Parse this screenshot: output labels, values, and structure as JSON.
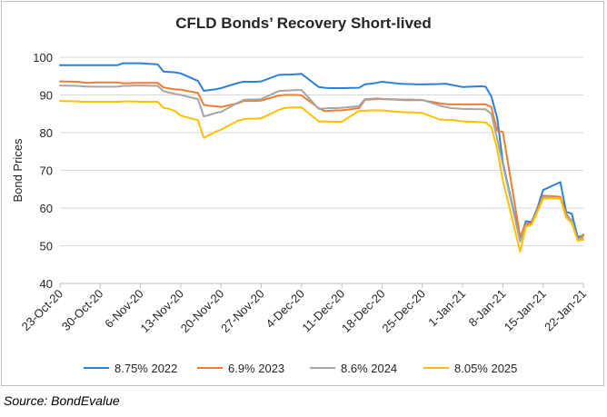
{
  "chart_data": {
    "type": "line",
    "title": "CFLD Bonds’ Recovery Short-lived",
    "ylabel": "Bond Prices",
    "xlabel": "",
    "ylim": [
      40,
      100
    ],
    "yticks": [
      40,
      50,
      60,
      70,
      80,
      90,
      100
    ],
    "grid": true,
    "legend_position": "bottom",
    "x_tick_labels": [
      "23-Oct-20",
      "30-Oct-20",
      "6-Nov-20",
      "13-Nov-20",
      "20-Nov-20",
      "27-Nov-20",
      "4-Dec-20",
      "11-Dec-20",
      "18-Dec-20",
      "25-Dec-20",
      "1-Jan-21",
      "8-Jan-21",
      "15-Jan-21",
      "22-Jan-21"
    ],
    "x": [
      "2020-10-23",
      "2020-10-26",
      "2020-10-27",
      "2020-10-28",
      "2020-10-29",
      "2020-10-30",
      "2020-11-02",
      "2020-11-03",
      "2020-11-04",
      "2020-11-05",
      "2020-11-06",
      "2020-11-09",
      "2020-11-10",
      "2020-11-11",
      "2020-11-12",
      "2020-11-13",
      "2020-11-16",
      "2020-11-17",
      "2020-11-18",
      "2020-11-19",
      "2020-11-20",
      "2020-11-23",
      "2020-11-24",
      "2020-11-25",
      "2020-11-26",
      "2020-11-27",
      "2020-11-30",
      "2020-12-01",
      "2020-12-02",
      "2020-12-03",
      "2020-12-04",
      "2020-12-07",
      "2020-12-08",
      "2020-12-09",
      "2020-12-10",
      "2020-12-11",
      "2020-12-14",
      "2020-12-15",
      "2020-12-16",
      "2020-12-17",
      "2020-12-18",
      "2020-12-21",
      "2020-12-22",
      "2020-12-23",
      "2020-12-24",
      "2020-12-25",
      "2020-12-28",
      "2020-12-29",
      "2020-12-30",
      "2020-12-31",
      "2021-01-01",
      "2021-01-04",
      "2021-01-05",
      "2021-01-06",
      "2021-01-07",
      "2021-01-08",
      "2021-01-11",
      "2021-01-12",
      "2021-01-13",
      "2021-01-14",
      "2021-01-15",
      "2021-01-18",
      "2021-01-19",
      "2021-01-20",
      "2021-01-21",
      "2021-01-22"
    ],
    "series": [
      {
        "name": "8.75% 2022",
        "color": "#2e7fd6",
        "values": [
          97.9,
          97.9,
          97.9,
          97.9,
          97.9,
          97.9,
          97.9,
          98.4,
          98.4,
          98.4,
          98.4,
          98.1,
          96.2,
          96.1,
          96.0,
          95.7,
          93.7,
          91.1,
          91.3,
          91.5,
          91.8,
          93.2,
          93.5,
          93.5,
          93.5,
          93.6,
          95.3,
          95.4,
          95.4,
          95.5,
          95.6,
          92.1,
          91.9,
          91.8,
          91.8,
          91.8,
          91.9,
          92.8,
          93.0,
          93.2,
          93.5,
          93.0,
          92.9,
          92.9,
          92.8,
          92.8,
          92.9,
          93.0,
          92.7,
          92.4,
          92.1,
          92.3,
          92.2,
          89.6,
          84.0,
          72.0,
          51.7,
          56.5,
          56.3,
          60.0,
          64.8,
          66.9,
          59.0,
          58.5,
          52.3,
          52.8
        ]
      },
      {
        "name": "6.9% 2023",
        "color": "#ed7d31",
        "values": [
          93.6,
          93.5,
          93.3,
          93.2,
          93.3,
          93.3,
          93.3,
          93.1,
          93.1,
          93.2,
          93.2,
          93.2,
          92.0,
          91.7,
          91.5,
          91.4,
          90.5,
          87.4,
          87.1,
          87.0,
          86.8,
          87.8,
          88.4,
          88.4,
          88.4,
          88.5,
          89.8,
          90.0,
          90.0,
          90.0,
          89.9,
          86.5,
          85.7,
          85.8,
          85.9,
          85.9,
          86.5,
          88.7,
          88.8,
          88.9,
          88.9,
          88.7,
          88.6,
          88.6,
          88.6,
          88.6,
          87.8,
          87.6,
          87.5,
          87.5,
          87.5,
          87.5,
          87.5,
          86.8,
          80.5,
          80.2,
          52.4,
          55.8,
          56.0,
          59.5,
          63.3,
          63.0,
          58.5,
          56.5,
          51.5,
          53.0
        ]
      },
      {
        "name": "8.6% 2024",
        "color": "#a5a5a5",
        "values": [
          92.5,
          92.4,
          92.3,
          92.2,
          92.2,
          92.2,
          92.2,
          92.4,
          92.4,
          92.5,
          92.5,
          92.4,
          91.0,
          90.6,
          90.3,
          90.0,
          88.9,
          84.3,
          84.7,
          85.2,
          85.5,
          88.0,
          88.7,
          88.8,
          88.8,
          88.9,
          91.0,
          91.1,
          91.2,
          91.3,
          91.3,
          86.3,
          86.4,
          86.5,
          86.5,
          86.6,
          87.0,
          88.9,
          89.0,
          89.1,
          89.0,
          88.8,
          88.8,
          88.8,
          88.7,
          88.7,
          87.2,
          86.8,
          86.5,
          86.4,
          86.3,
          86.2,
          86.2,
          85.0,
          78.4,
          71.5,
          51.1,
          55.4,
          55.6,
          59.0,
          62.8,
          62.5,
          58.0,
          56.8,
          51.6,
          52.2
        ]
      },
      {
        "name": "8.05% 2025",
        "color": "#ffc000",
        "values": [
          88.4,
          88.3,
          88.2,
          88.2,
          88.2,
          88.2,
          88.2,
          88.3,
          88.3,
          88.3,
          88.2,
          88.2,
          86.6,
          86.3,
          85.7,
          84.5,
          83.3,
          78.6,
          79.4,
          80.2,
          80.8,
          83.2,
          83.6,
          83.7,
          83.7,
          83.8,
          86.0,
          86.5,
          86.7,
          86.7,
          86.7,
          83.0,
          83.0,
          82.9,
          82.9,
          82.9,
          85.8,
          85.8,
          85.9,
          85.9,
          85.9,
          85.5,
          85.4,
          85.4,
          85.3,
          85.2,
          83.5,
          83.4,
          83.4,
          83.2,
          83.0,
          82.8,
          82.7,
          81.5,
          75.7,
          67.3,
          48.4,
          55.0,
          55.6,
          59.0,
          62.5,
          62.6,
          57.5,
          56.0,
          51.3,
          51.6
        ]
      }
    ]
  },
  "source_note": "Source: BondEvalue"
}
